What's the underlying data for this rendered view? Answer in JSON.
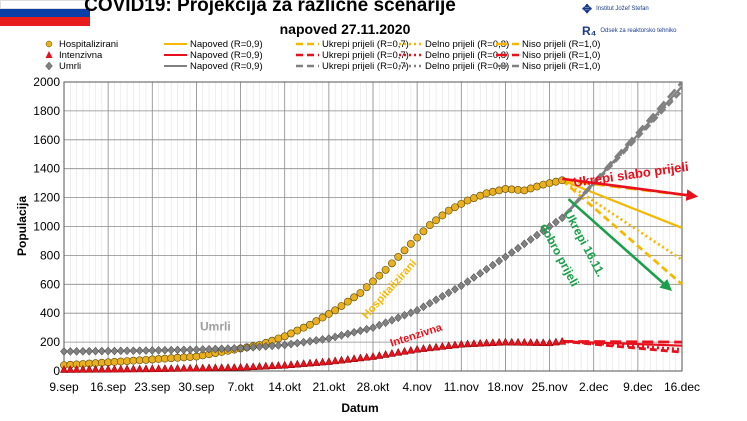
{
  "header": {
    "title": "COVID19: Projekcija za različne scenarije",
    "subtitle": "napoved 27.11.2020",
    "logo_ijs": "Institut Jožef Stefan",
    "logo_odsek": "Odsek za reaktorsko tehniko"
  },
  "colors": {
    "hosp": "#f5b800",
    "hosp_marker": "#e8b020",
    "icu": "#e8101c",
    "deaths": "#808080",
    "arrow_red": "#e8101c",
    "arrow_green": "#1aa04a",
    "flag_white": "#ffffff",
    "flag_blue": "#0a3fa8",
    "flag_red": "#e81c1c"
  },
  "legend": {
    "rows": [
      {
        "marker": "circle",
        "series": "Hospitalizirani",
        "color": "#f5b800",
        "items": [
          "Napoved (R=0,9)",
          "Ukrepi prijeli (R=0,7)",
          "Delno prijeli (R=0,8)",
          "Niso prijeli (R=1,0)"
        ]
      },
      {
        "marker": "triangle",
        "series": "Intenzivna",
        "color": "#e8101c",
        "items": [
          "Napoved (R=0,9)",
          "Ukrepi prijeli (R=0,7)",
          "Delno prijeli (R=0,8)",
          "Niso prijeli (R=1,0)"
        ]
      },
      {
        "marker": "diamond",
        "series": "Umrli",
        "color": "#808080",
        "items": [
          "Napoved (R=0,9)",
          "Ukrepi prijeli (R=0,7)",
          "Delno prijeli (R=0,8)",
          "Niso prijeli (R=1,0)"
        ]
      }
    ]
  },
  "chart_data": {
    "type": "line",
    "xlabel": "Datum",
    "ylabel": "Populacija",
    "ylim": [
      0,
      2000
    ],
    "yticks": [
      0,
      200,
      400,
      600,
      800,
      1000,
      1200,
      1400,
      1600,
      1800,
      2000
    ],
    "xlim": [
      "2020-09-09",
      "2020-12-16"
    ],
    "xticks": [
      "9.sep",
      "16.sep",
      "23.sep",
      "30.sep",
      "7.okt",
      "14.okt",
      "21.okt",
      "28.okt",
      "4.nov",
      "11.nov",
      "18.nov",
      "25.nov",
      "2.dec",
      "9.dec",
      "16.dec"
    ],
    "xtick_dates": [
      "2020-09-09",
      "2020-09-16",
      "2020-09-23",
      "2020-09-30",
      "2020-10-07",
      "2020-10-14",
      "2020-10-21",
      "2020-10-28",
      "2020-11-04",
      "2020-11-11",
      "2020-11-18",
      "2020-11-25",
      "2020-12-02",
      "2020-12-09",
      "2020-12-16"
    ],
    "grid": true,
    "legend_position": "top",
    "series": [
      {
        "name": "Hospitalizirani",
        "kind": "observed",
        "marker": "circle",
        "x": [
          "2020-09-09",
          "2020-09-16",
          "2020-09-23",
          "2020-09-30",
          "2020-10-05",
          "2020-10-10",
          "2020-10-14",
          "2020-10-18",
          "2020-10-22",
          "2020-10-26",
          "2020-10-30",
          "2020-11-03",
          "2020-11-06",
          "2020-11-09",
          "2020-11-12",
          "2020-11-15",
          "2020-11-18",
          "2020-11-21",
          "2020-11-24",
          "2020-11-27"
        ],
        "y": [
          40,
          60,
          80,
          100,
          140,
          180,
          240,
          320,
          420,
          540,
          700,
          880,
          1010,
          1110,
          1180,
          1230,
          1260,
          1250,
          1290,
          1320
        ]
      },
      {
        "name": "Intenzivna",
        "kind": "observed",
        "marker": "triangle",
        "x": [
          "2020-09-09",
          "2020-09-23",
          "2020-10-07",
          "2020-10-14",
          "2020-10-21",
          "2020-10-28",
          "2020-11-04",
          "2020-11-11",
          "2020-11-18",
          "2020-11-25",
          "2020-11-27"
        ],
        "y": [
          10,
          15,
          25,
          40,
          65,
          100,
          150,
          185,
          200,
          195,
          205
        ]
      },
      {
        "name": "Umrli",
        "kind": "observed",
        "marker": "diamond",
        "x": [
          "2020-09-09",
          "2020-09-16",
          "2020-09-23",
          "2020-09-30",
          "2020-10-07",
          "2020-10-14",
          "2020-10-21",
          "2020-10-28",
          "2020-11-04",
          "2020-11-11",
          "2020-11-18",
          "2020-11-25",
          "2020-11-27"
        ],
        "y": [
          135,
          138,
          142,
          148,
          158,
          180,
          225,
          300,
          420,
          590,
          790,
          1000,
          1060
        ]
      },
      {
        "name": "Hospitalizirani Napoved (R=0,9)",
        "kind": "projection",
        "style": "solid",
        "x": [
          "2020-11-27",
          "2020-12-16"
        ],
        "y": [
          1320,
          990
        ]
      },
      {
        "name": "Hospitalizirani Ukrepi prijeli (R=0,7)",
        "kind": "projection",
        "style": "dash",
        "x": [
          "2020-11-27",
          "2020-12-16"
        ],
        "y": [
          1320,
          600
        ]
      },
      {
        "name": "Hospitalizirani Delno prijeli (R=0,8)",
        "kind": "projection",
        "style": "dot",
        "x": [
          "2020-11-27",
          "2020-12-16"
        ],
        "y": [
          1320,
          770
        ]
      },
      {
        "name": "Hospitalizirani Niso prijeli (R=1,0)",
        "kind": "projection",
        "style": "longdash",
        "x": [
          "2020-11-27",
          "2020-12-16"
        ],
        "y": [
          1320,
          1220
        ]
      },
      {
        "name": "Intenzivna Napoved (R=0,9)",
        "kind": "projection",
        "style": "solid",
        "x": [
          "2020-11-27",
          "2020-12-16"
        ],
        "y": [
          205,
          175
        ]
      },
      {
        "name": "Intenzivna Ukrepi prijeli (R=0,7)",
        "kind": "projection",
        "style": "dash",
        "x": [
          "2020-11-27",
          "2020-12-16"
        ],
        "y": [
          205,
          130
        ]
      },
      {
        "name": "Intenzivna Delno prijeli (R=0,8)",
        "kind": "projection",
        "style": "dot",
        "x": [
          "2020-11-27",
          "2020-12-16"
        ],
        "y": [
          205,
          150
        ]
      },
      {
        "name": "Intenzivna Niso prijeli (R=1,0)",
        "kind": "projection",
        "style": "longdash",
        "x": [
          "2020-11-27",
          "2020-12-16"
        ],
        "y": [
          205,
          200
        ]
      },
      {
        "name": "Umrli Napoved (R=0,9)",
        "kind": "projection",
        "style": "solid",
        "x": [
          "2020-11-27",
          "2020-12-16"
        ],
        "y": [
          1060,
          1970
        ]
      },
      {
        "name": "Umrli Ukrepi prijeli (R=0,7)",
        "kind": "projection",
        "style": "dash",
        "x": [
          "2020-11-27",
          "2020-12-16"
        ],
        "y": [
          1060,
          1940
        ]
      },
      {
        "name": "Umrli Delno prijeli (R=0,8)",
        "kind": "projection",
        "style": "dot",
        "x": [
          "2020-11-27",
          "2020-12-16"
        ],
        "y": [
          1060,
          1955
        ]
      },
      {
        "name": "Umrli Niso prijeli (R=1,0)",
        "kind": "projection",
        "style": "longdash",
        "x": [
          "2020-11-27",
          "2020-12-16"
        ],
        "y": [
          1060,
          2000
        ]
      }
    ],
    "annotations": [
      {
        "text": "Ukrepi slabo prijeli",
        "color": "#e8101c",
        "arrow_from": [
          "2020-11-27",
          1330
        ],
        "arrow_to": [
          "2020-12-18",
          1210
        ],
        "text_at": [
          "2020-12-08",
          1330
        ],
        "angle": -8,
        "size": 13
      },
      {
        "text": "Ukrepi 16.11.",
        "color": "#1aa04a",
        "arrow_from": [
          "2020-11-28",
          1190
        ],
        "arrow_to": [
          "2020-12-14",
          570
        ],
        "text_at": [
          "2020-11-30",
          870
        ],
        "angle": 62,
        "size": 12
      },
      {
        "text": "dobro prijeli",
        "color": "#1aa04a",
        "text_at": [
          "2020-11-26",
          790
        ],
        "angle": 62,
        "size": 12
      },
      {
        "text": "Hospitalizirani",
        "color": "#f5b800",
        "text_at": [
          "2020-10-31",
          550
        ],
        "angle": -48,
        "size": 11
      },
      {
        "text": "Intenzivna",
        "color": "#e8101c",
        "text_at": [
          "2020-11-04",
          225
        ],
        "angle": -18,
        "size": 11
      },
      {
        "text": "Umrli",
        "color": "#a0a0a0",
        "text_at": [
          "2020-10-03",
          280
        ],
        "angle": 0,
        "size": 12
      }
    ]
  }
}
